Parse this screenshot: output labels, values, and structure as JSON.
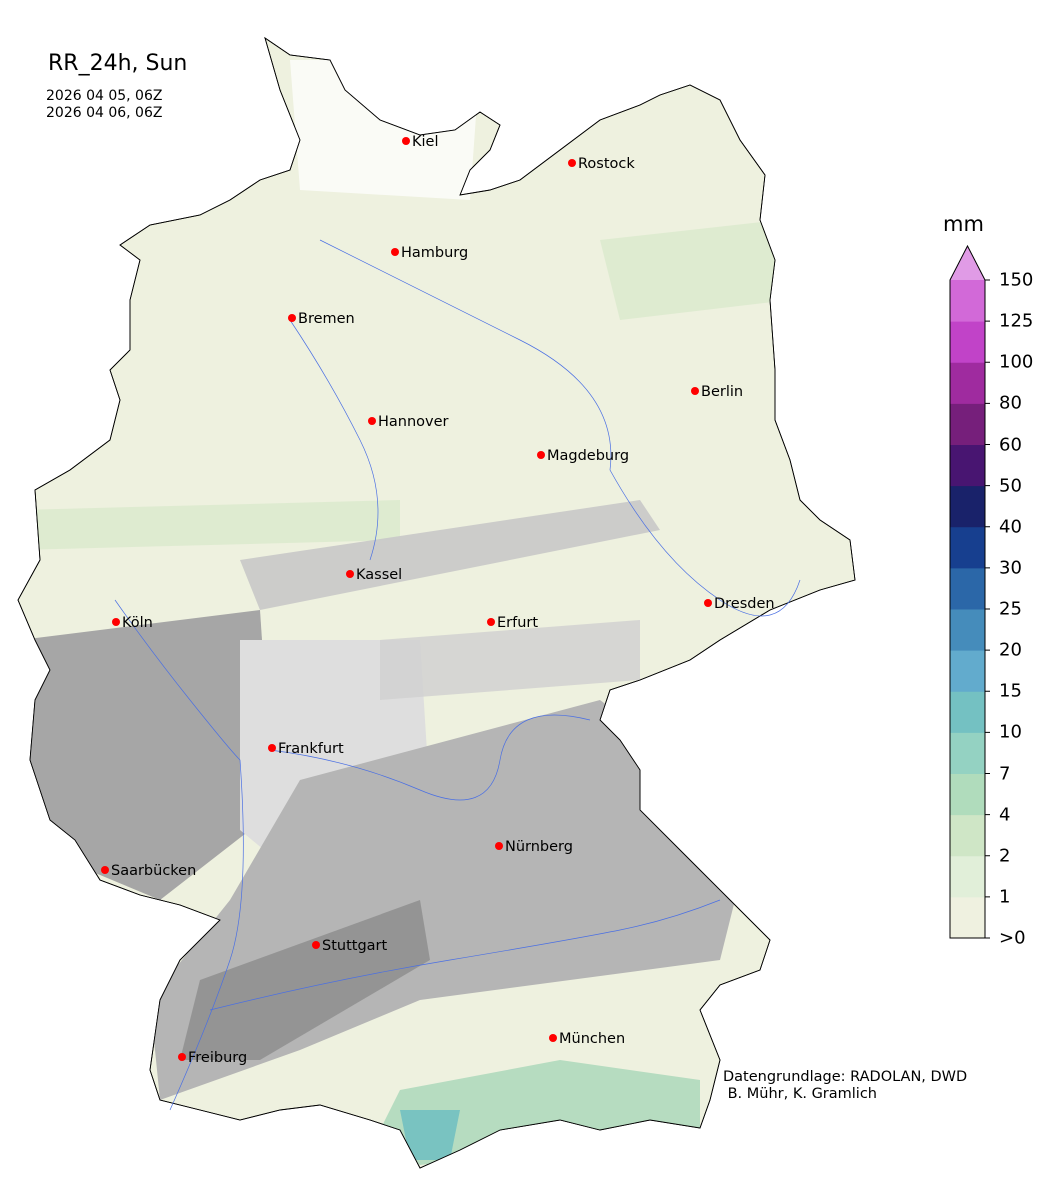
{
  "title": "RR_24h, Sun",
  "dates": [
    "2026 04 05, 06Z",
    "2026 04 06, 06Z"
  ],
  "colorbar": {
    "unit": "mm",
    "ticks": [
      ">0",
      "1",
      "2",
      "4",
      "7",
      "10",
      "15",
      "20",
      "25",
      "30",
      "40",
      "50",
      "60",
      "80",
      "100",
      "125",
      "150"
    ],
    "colors": [
      "#eff1e0",
      "#e1efd9",
      "#cfe6c6",
      "#b0dcbc",
      "#94d2c2",
      "#74c1c2",
      "#62abcd",
      "#458cbb",
      "#2b67a8",
      "#173f8f",
      "#19226a",
      "#481571",
      "#761f7b",
      "#9f2b9f",
      "#c143c8",
      "#d269d8"
    ],
    "extend_color": "#e09be6"
  },
  "cities": [
    "Kiel",
    "Rostock",
    "Hamburg",
    "Bremen",
    "Berlin",
    "Hannover",
    "Magdeburg",
    "Kassel",
    "Köln",
    "Erfurt",
    "Dresden",
    "Frankfurt",
    "Nürnberg",
    "Saarbücken",
    "Stuttgart",
    "Freiburg",
    "München"
  ],
  "credits": [
    "Datengrundlage: RADOLAN, DWD",
    " B. Mühr, K. Gramlich"
  ]
}
